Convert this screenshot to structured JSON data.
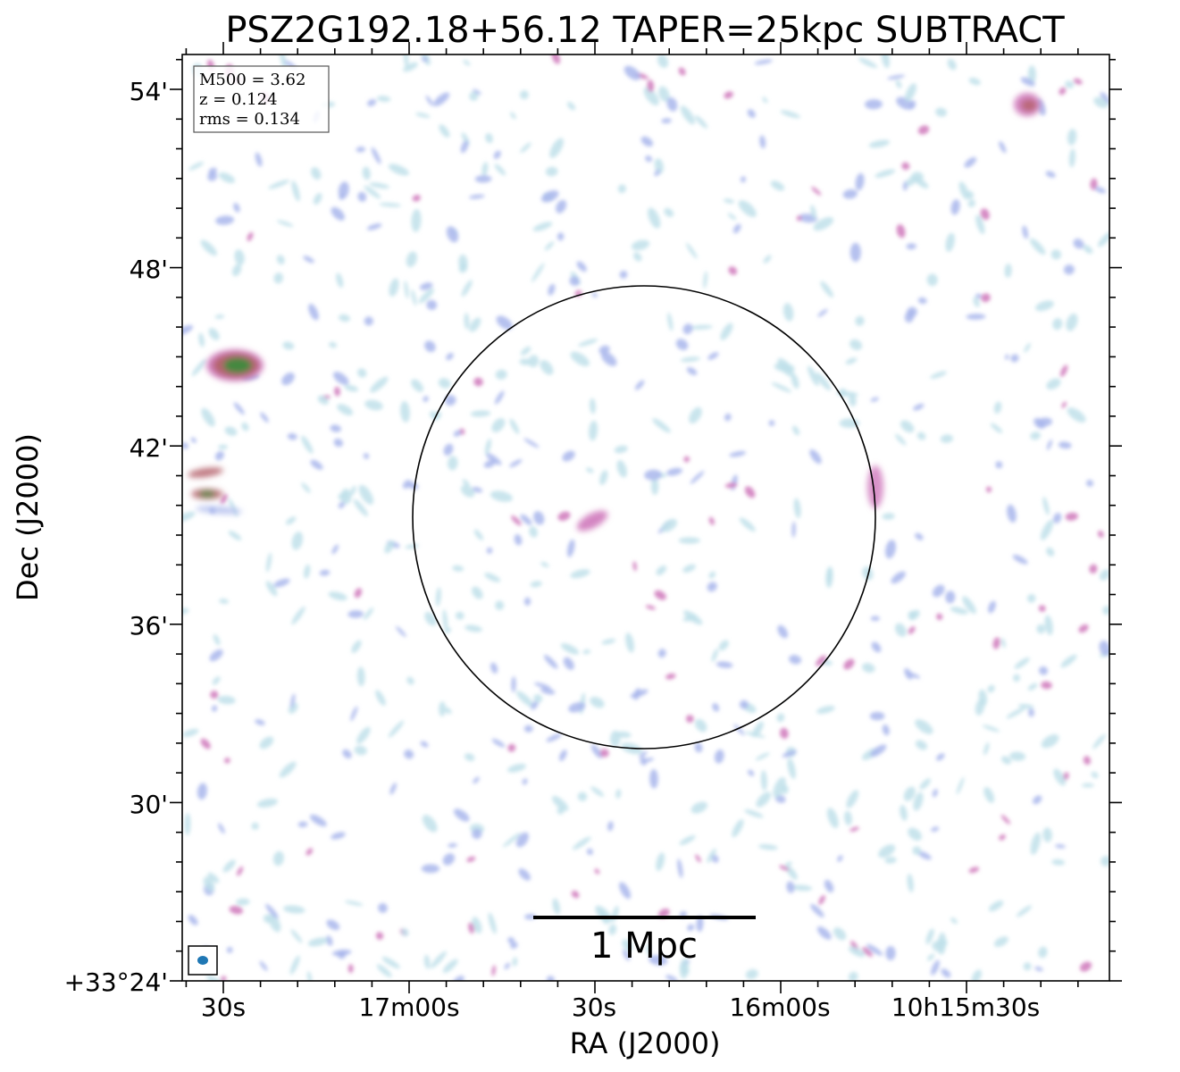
{
  "title": "PSZ2G192.18+56.12 TAPER=25kpc SUBTRACT",
  "info_box": {
    "mass": "M500 = 3.62",
    "redshift": "z = 0.124",
    "rms": "rms = 0.134"
  },
  "scale_bar": {
    "label": "1 Mpc"
  },
  "colors": {
    "noise_light": "#bfe0ea",
    "noise_mid": "#a9b6ec",
    "noise_strong": "#d27fbf",
    "source_red": "#b5636c",
    "source_green": "#3f8a3c",
    "frame": "#000000",
    "beam": "#1f77b4"
  },
  "chart_data": {
    "type": "heatmap",
    "title": "PSZ2G192.18+56.12 TAPER=25kpc SUBTRACT",
    "xlabel": "RA (J2000)",
    "ylabel": "Dec (J2000)",
    "x_ticks": [
      "30s",
      "17m00s",
      "30s",
      "16m00s",
      "10h15m30s"
    ],
    "y_ticks": [
      "+33°24'",
      "30'",
      "36'",
      "42'",
      "48'",
      "54'"
    ],
    "ylim_arcmin_offset": [
      0,
      31
    ],
    "circle": {
      "center_arcmin": [
        15.5,
        15.5
      ],
      "radius_arcmin": 7.8
    },
    "grid": false,
    "annotations": [
      "M500 = 3.62",
      "z = 0.124",
      "rms = 0.134",
      "1 Mpc"
    ]
  }
}
